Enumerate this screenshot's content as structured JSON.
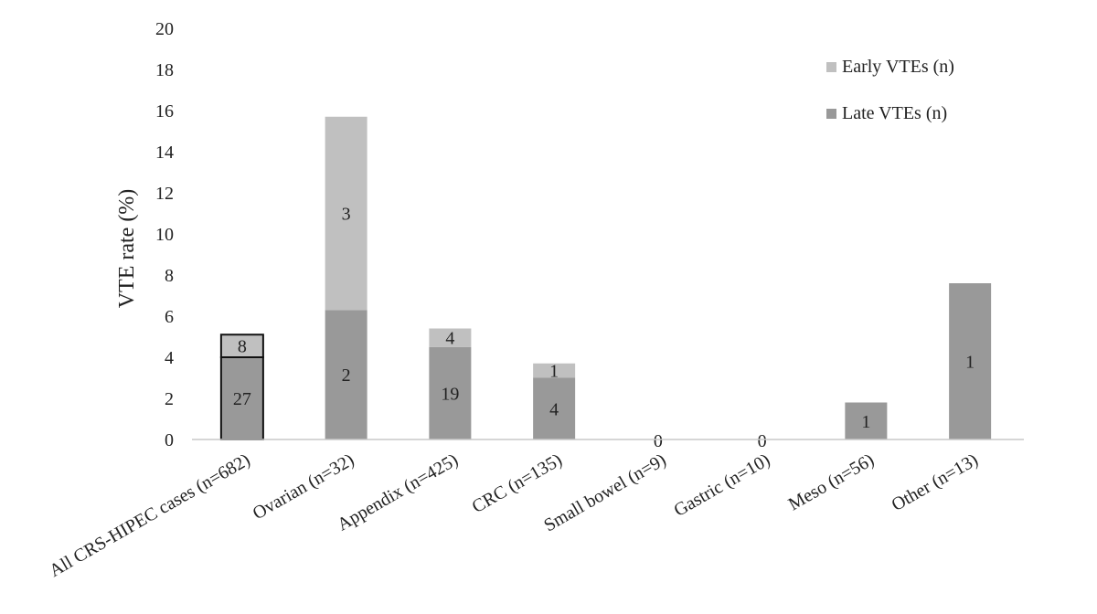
{
  "chart_data": {
    "type": "bar",
    "stacked": true,
    "ylabel": "VTE rate (%)",
    "xlabel": "",
    "ylim": [
      0,
      20
    ],
    "yticks": [
      0,
      2,
      4,
      6,
      8,
      10,
      12,
      14,
      16,
      18,
      20
    ],
    "grid": false,
    "legend_position": "top-right",
    "categories": [
      "All CRS-HIPEC cases (n=682)",
      "Ovarian (n=32)",
      "Appendix (n=425)",
      "CRC (n=135)",
      "Small bowel (n=9)",
      "Gastric (n=10)",
      "Meso (n=56)",
      "Other (n=13)"
    ],
    "series": [
      {
        "name": "Late VTEs (n)",
        "color": "#999999",
        "values": [
          4.0,
          6.3,
          4.5,
          3.0,
          0,
          0,
          1.8,
          7.6
        ],
        "labels": [
          "27",
          "2",
          "19",
          "4",
          "0",
          "0",
          "1",
          "1"
        ]
      },
      {
        "name": "Early VTEs (n)",
        "color": "#c0c0c0",
        "values": [
          1.1,
          9.4,
          0.9,
          0.7,
          0,
          0,
          0,
          0
        ],
        "labels": [
          "8",
          "3",
          "4",
          "1",
          "",
          "",
          "",
          ""
        ]
      }
    ],
    "outlined_categories": [
      "All CRS-HIPEC cases (n=682)"
    ]
  }
}
